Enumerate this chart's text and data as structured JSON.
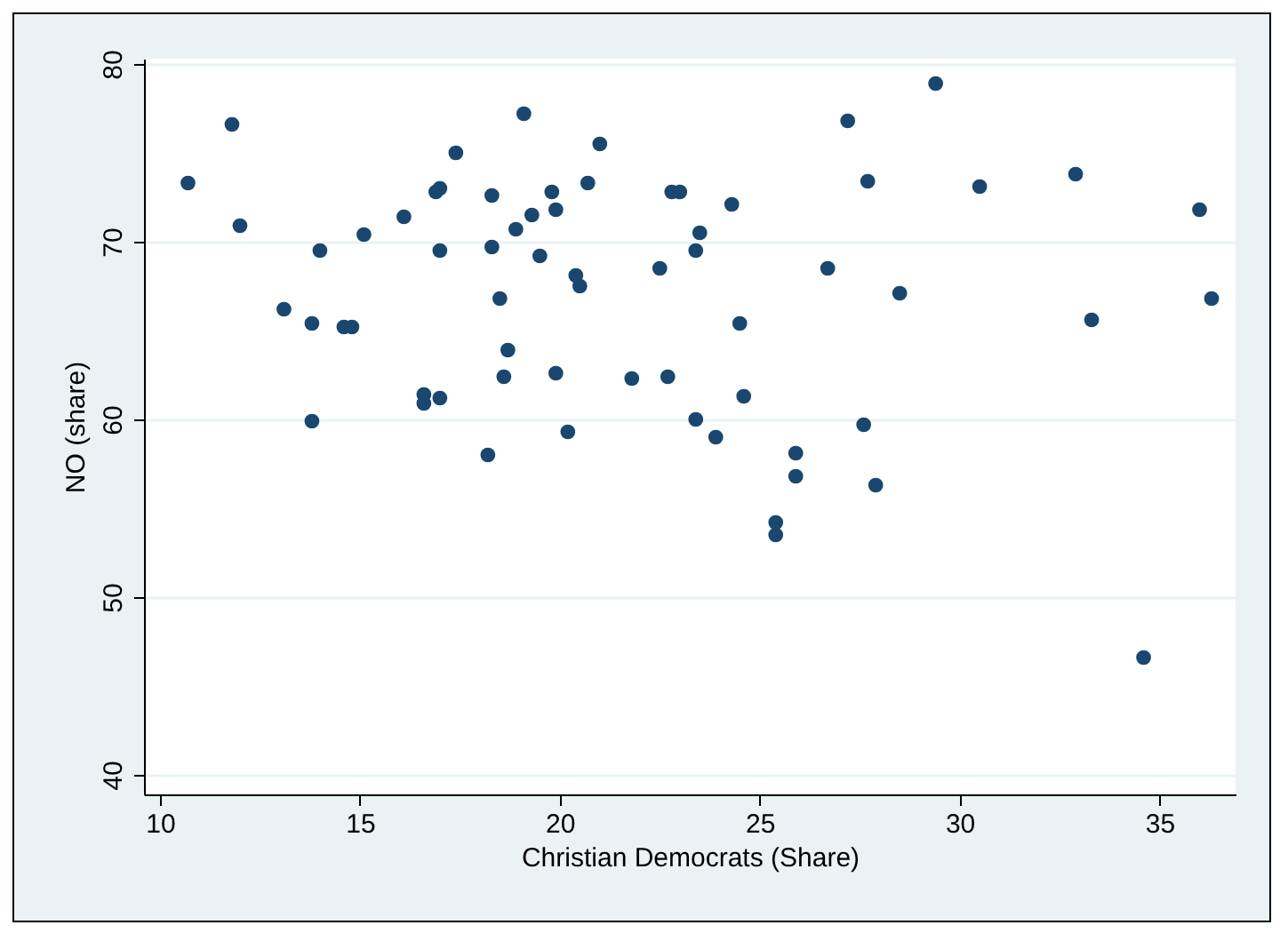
{
  "chart_data": {
    "type": "scatter",
    "xlabel": "Christian Democrats (Share)",
    "ylabel": "NO (share)",
    "xlim": [
      9.6,
      36.9
    ],
    "ylim": [
      38.9,
      80.3
    ],
    "xticks": [
      10,
      15,
      20,
      25,
      30,
      35
    ],
    "yticks": [
      40,
      50,
      60,
      70,
      80
    ],
    "grid": "y",
    "marker": "circle",
    "legend": false,
    "series": [
      {
        "color": "#1a476f",
        "x": [
          10.7,
          11.8,
          12.0,
          13.1,
          13.8,
          13.8,
          14.0,
          14.6,
          14.8,
          15.1,
          16.1,
          16.6,
          16.6,
          17.0,
          16.9,
          17.0,
          17.0,
          17.4,
          18.3,
          18.3,
          18.2,
          18.5,
          18.7,
          18.6,
          18.9,
          19.1,
          19.3,
          19.5,
          19.8,
          19.9,
          19.9,
          20.2,
          20.4,
          20.5,
          20.7,
          21.0,
          21.8,
          22.5,
          22.7,
          22.8,
          23.0,
          23.4,
          23.5,
          23.4,
          23.9,
          24.3,
          24.5,
          24.6,
          25.4,
          25.4,
          25.9,
          25.9,
          26.7,
          27.2,
          27.6,
          27.7,
          27.9,
          28.5,
          29.4,
          30.5,
          32.9,
          33.3,
          34.6,
          36.0,
          36.3
        ],
        "values": [
          73.3,
          76.6,
          70.9,
          66.2,
          65.4,
          59.9,
          69.5,
          65.2,
          65.2,
          70.4,
          71.4,
          61.4,
          60.9,
          61.2,
          72.8,
          73.0,
          69.5,
          75.0,
          72.6,
          69.7,
          58.0,
          66.8,
          63.9,
          62.4,
          70.7,
          77.2,
          71.5,
          69.2,
          72.8,
          71.8,
          62.6,
          59.3,
          68.1,
          67.5,
          73.3,
          75.5,
          62.3,
          68.5,
          62.4,
          72.8,
          72.8,
          60.0,
          70.5,
          69.5,
          59.0,
          72.1,
          65.4,
          61.3,
          54.2,
          53.5,
          58.1,
          56.8,
          68.5,
          76.8,
          59.7,
          73.4,
          56.3,
          67.1,
          78.9,
          73.1,
          73.8,
          65.6,
          46.6,
          71.8,
          66.8
        ]
      }
    ]
  }
}
